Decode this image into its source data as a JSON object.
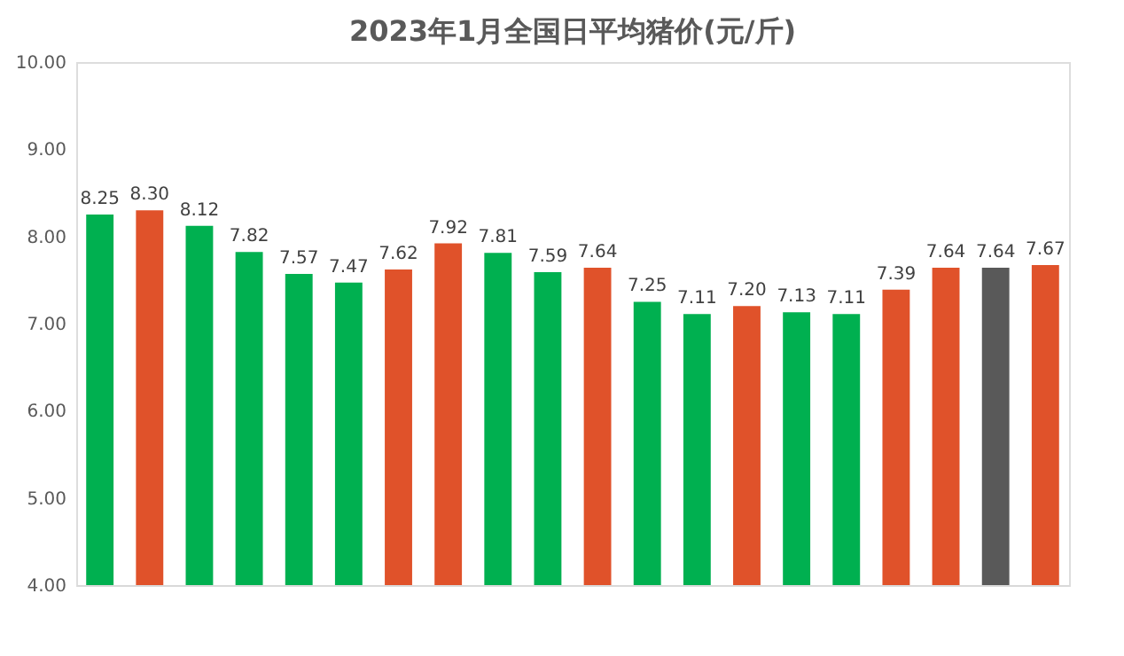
{
  "chart_data": {
    "type": "bar",
    "title": "2023年1月全国日平均猪价(元/斤)",
    "categories": [
      null,
      null,
      null,
      null,
      null,
      null,
      null,
      null,
      null,
      null,
      null,
      null,
      null,
      null,
      null,
      null,
      null,
      null,
      null,
      null
    ],
    "values": [
      8.25,
      8.3,
      8.12,
      7.82,
      7.57,
      7.47,
      7.62,
      7.92,
      7.81,
      7.59,
      7.64,
      7.25,
      7.11,
      7.2,
      7.13,
      7.11,
      7.39,
      7.64,
      7.64,
      7.67
    ],
    "value_labels": [
      "8.25",
      "8.30",
      "8.12",
      "7.82",
      "7.57",
      "7.47",
      "7.62",
      "7.92",
      "7.81",
      "7.59",
      "7.64",
      "7.25",
      "7.11",
      "7.20",
      "7.13",
      "7.11",
      "7.39",
      "7.64",
      "7.64",
      "7.67"
    ],
    "colors": [
      "#00b050",
      "#e0522a",
      "#00b050",
      "#00b050",
      "#00b050",
      "#00b050",
      "#e0522a",
      "#e0522a",
      "#00b050",
      "#00b050",
      "#e0522a",
      "#00b050",
      "#00b050",
      "#e0522a",
      "#00b050",
      "#00b050",
      "#e0522a",
      "#e0522a",
      "#595959",
      "#e0522a"
    ],
    "ylim": [
      4,
      10
    ],
    "yticks": [
      {
        "value": 4,
        "label": "4.00"
      },
      {
        "value": 5,
        "label": "5.00"
      },
      {
        "value": 6,
        "label": "6.00"
      },
      {
        "value": 7,
        "label": "7.00"
      },
      {
        "value": 8,
        "label": "8.00"
      },
      {
        "value": 9,
        "label": "9.00"
      },
      {
        "value": 10,
        "label": "10.00"
      }
    ],
    "tick_labels": "y",
    "grid": false
  }
}
